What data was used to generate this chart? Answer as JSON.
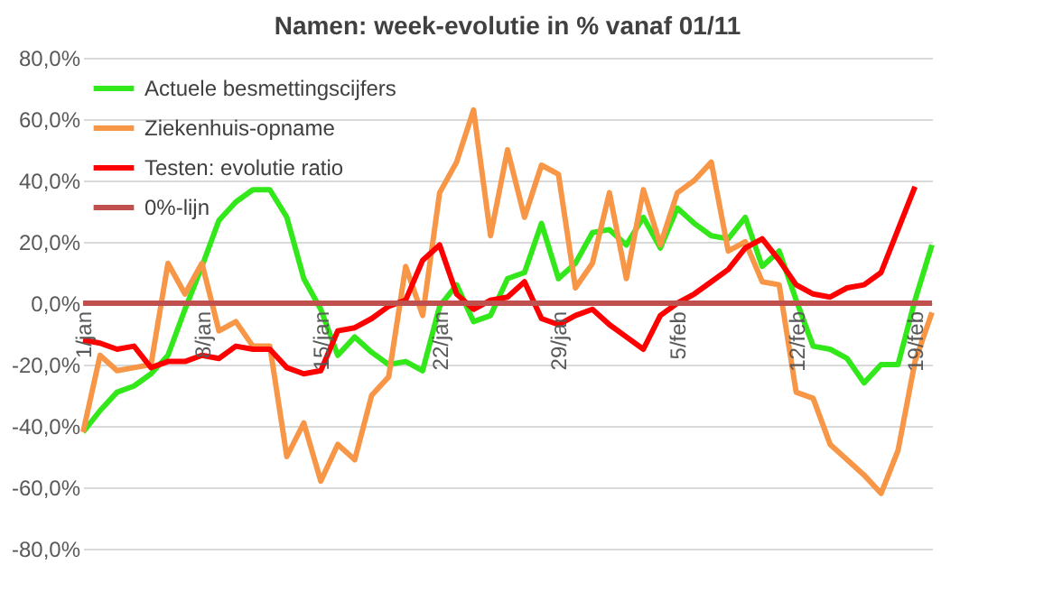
{
  "chart_data": {
    "type": "line",
    "title": "Namen: week-evolutie in %  vanaf 01/11",
    "categories": [
      "1/jan",
      null,
      null,
      null,
      null,
      null,
      null,
      "8/jan",
      null,
      null,
      null,
      null,
      null,
      null,
      "15/jan",
      null,
      null,
      null,
      null,
      null,
      null,
      "22/jan",
      null,
      null,
      null,
      null,
      null,
      null,
      "29/jan",
      null,
      null,
      null,
      null,
      null,
      null,
      "5/feb",
      null,
      null,
      null,
      null,
      null,
      null,
      "12/feb",
      null,
      null,
      null,
      null,
      null,
      null,
      "19/feb",
      null
    ],
    "series": [
      {
        "name": "Actuele besmettingscijfers",
        "color": "#33e81a",
        "values": [
          -42,
          -35,
          -29,
          -27,
          -23,
          -17,
          -2,
          12,
          27,
          33,
          37,
          37,
          28,
          8,
          -2,
          -17,
          -11,
          -16,
          -20,
          -19,
          -22,
          -1,
          6,
          -6,
          -4,
          8,
          10,
          26,
          8,
          13,
          23,
          24,
          19,
          28,
          18,
          31,
          26,
          22,
          21,
          28,
          12,
          17,
          1,
          -14,
          -15,
          -18,
          -26,
          -20,
          -20,
          1,
          19
        ]
      },
      {
        "name": "Ziekenhuis-opname",
        "color": "#f79646",
        "values": [
          -42,
          -17,
          -22,
          -21,
          -20,
          13,
          3,
          13,
          -9,
          -6,
          -14,
          -14,
          -50,
          -39,
          -58,
          -46,
          -51,
          -30,
          -24,
          12,
          -4,
          36,
          46,
          63,
          22,
          50,
          28,
          45,
          42,
          5,
          13,
          36,
          8,
          37,
          19,
          36,
          40,
          46,
          17,
          20,
          7,
          6,
          -29,
          -31,
          -46,
          -51,
          -56,
          -62,
          -48,
          -19,
          -3
        ]
      },
      {
        "name": "Testen: evolutie ratio",
        "color": "#ff0000",
        "values": [
          -12,
          -13,
          -15,
          -14,
          -21,
          -19,
          -19,
          -17,
          -18,
          -14,
          -15,
          -15,
          -21,
          -23,
          -22,
          -9,
          -8,
          -5,
          -1,
          1,
          14,
          19,
          3,
          -2,
          1,
          2,
          7,
          -5,
          -7,
          -4,
          -2,
          -7,
          -11,
          -15,
          -4,
          0,
          3,
          7,
          11,
          18,
          21,
          14,
          6,
          3,
          2,
          5,
          6,
          10,
          24,
          38,
          null
        ]
      },
      {
        "name": "0%-lijn",
        "color": "#c0504d",
        "values": [
          0,
          0,
          0,
          0,
          0,
          0,
          0,
          0,
          0,
          0,
          0,
          0,
          0,
          0,
          0,
          0,
          0,
          0,
          0,
          0,
          0,
          0,
          0,
          0,
          0,
          0,
          0,
          0,
          0,
          0,
          0,
          0,
          0,
          0,
          0,
          0,
          0,
          0,
          0,
          0,
          0,
          0,
          0,
          0,
          0,
          0,
          0,
          0,
          0,
          0,
          0
        ]
      }
    ],
    "ylim": [
      -80,
      80
    ],
    "yticks": [
      {
        "value": -80,
        "label": "-80,0%"
      },
      {
        "value": -60,
        "label": "-60,0%"
      },
      {
        "value": -40,
        "label": "-40,0%"
      },
      {
        "value": -20,
        "label": "-20,0%"
      },
      {
        "value": 0,
        "label": "0,0%"
      },
      {
        "value": 20,
        "label": "20,0%"
      },
      {
        "value": 40,
        "label": "40,0%"
      },
      {
        "value": 60,
        "label": "60,0%"
      },
      {
        "value": 80,
        "label": "80,0%"
      }
    ],
    "grid": "y",
    "legend": "top left",
    "marker": "none",
    "line_style": "solid"
  }
}
